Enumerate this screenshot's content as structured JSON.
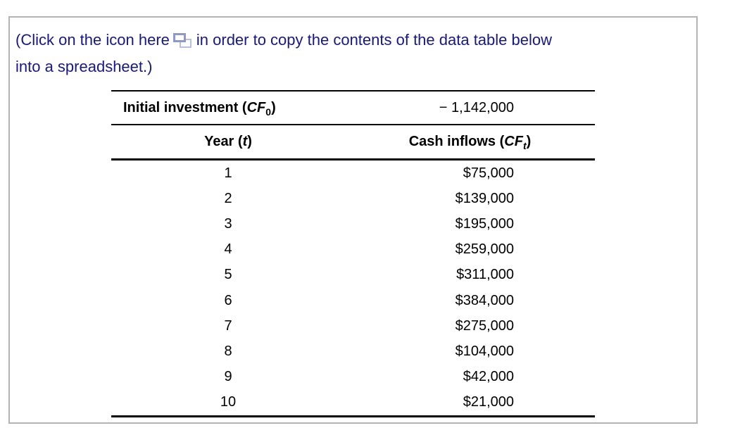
{
  "colors": {
    "instruction_text": "#17178c",
    "panel_border": "#b3b3b3",
    "table_line": "#000000",
    "icon_front_border": "#8b99d2",
    "icon_back_border": "#b7bfe2"
  },
  "instruction": {
    "before_icon": "(Click on the icon here",
    "after_icon": "in order to copy the contents of the data table below",
    "line2": "into a spreadsheet.)",
    "icon": "copy-icon"
  },
  "table": {
    "initial": {
      "pre": "Initial investment (",
      "var": "CF",
      "sub": "0",
      "post": ")",
      "value": "− 1,142,000"
    },
    "header": {
      "year_pre": "Year (",
      "year_var": "t",
      "year_post": ")",
      "cash_pre": "Cash inflows (",
      "cash_var": "CF",
      "cash_sub": "t",
      "cash_post": ")"
    },
    "rows": [
      {
        "year": "1",
        "cash_inflow": "$75,000"
      },
      {
        "year": "2",
        "cash_inflow": "$139,000"
      },
      {
        "year": "3",
        "cash_inflow": "$195,000"
      },
      {
        "year": "4",
        "cash_inflow": "$259,000"
      },
      {
        "year": "5",
        "cash_inflow": "$311,000"
      },
      {
        "year": "6",
        "cash_inflow": "$384,000"
      },
      {
        "year": "7",
        "cash_inflow": "$275,000"
      },
      {
        "year": "8",
        "cash_inflow": "$104,000"
      },
      {
        "year": "9",
        "cash_inflow": "$42,000"
      },
      {
        "year": "10",
        "cash_inflow": "$21,000"
      }
    ]
  }
}
